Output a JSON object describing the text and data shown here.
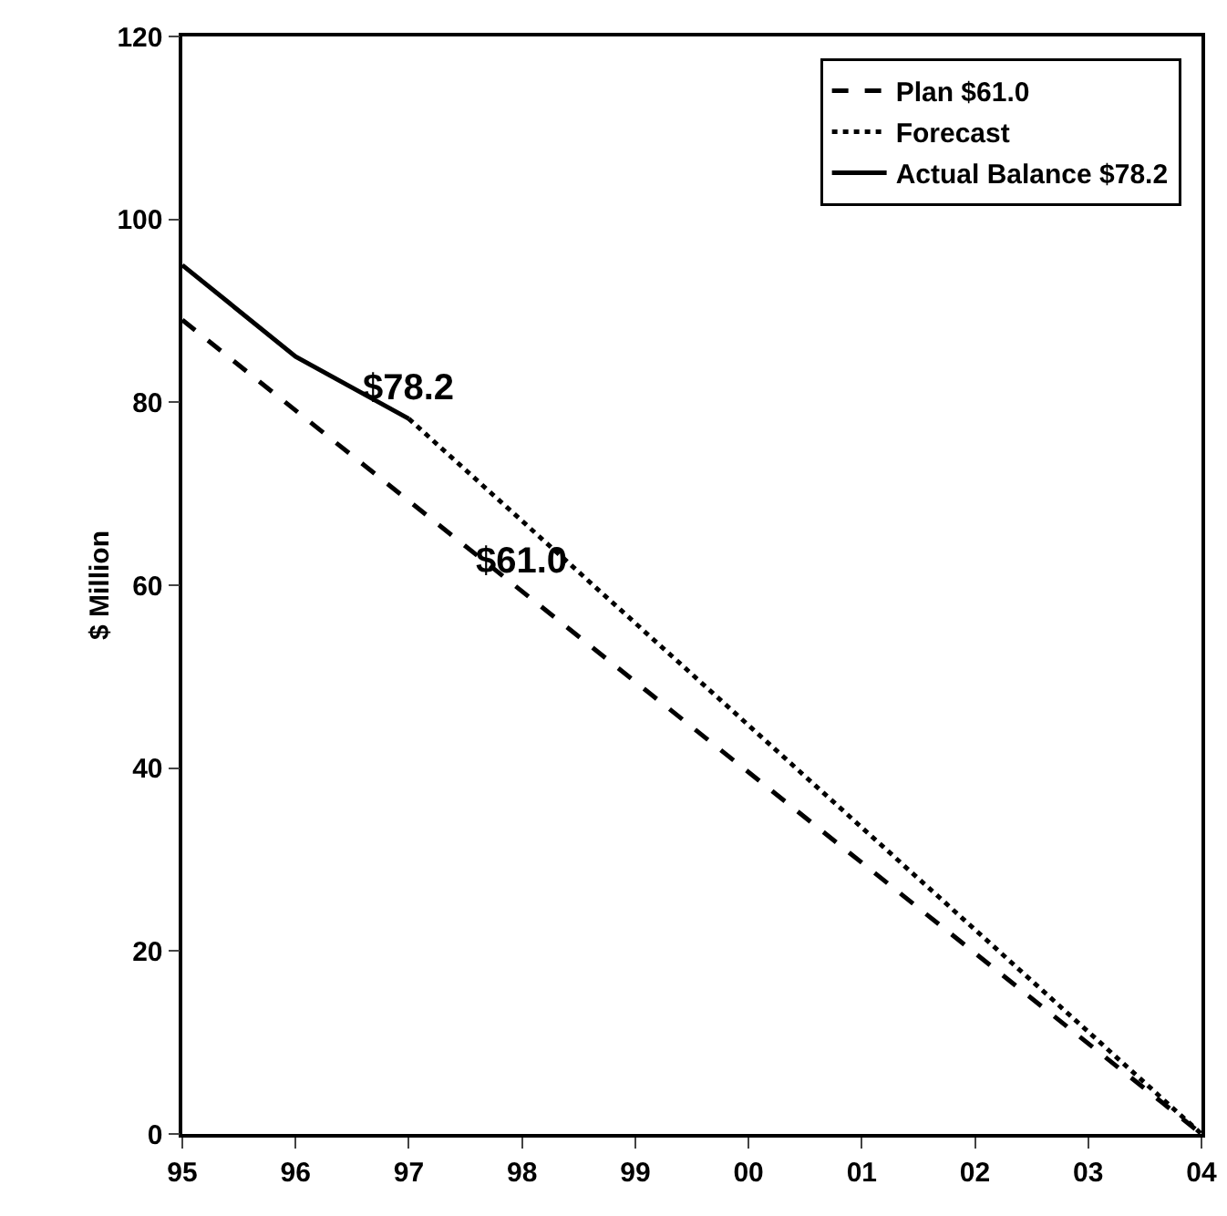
{
  "chart_data": {
    "type": "line",
    "ylabel": "$ Million",
    "categories": [
      "95",
      "96",
      "97",
      "98",
      "99",
      "00",
      "01",
      "02",
      "03",
      "04"
    ],
    "series": [
      {
        "name": "Plan $61.0",
        "color": "#000000",
        "line_style": "dashed",
        "values": [
          89,
          null,
          null,
          null,
          null,
          null,
          null,
          null,
          null,
          0
        ]
      },
      {
        "name": "Forecast",
        "color": "#000000",
        "line_style": "dotted",
        "values": [
          null,
          null,
          78.2,
          null,
          null,
          null,
          null,
          null,
          null,
          0
        ]
      },
      {
        "name": "Actual Balance $78.2",
        "color": "#000000",
        "line_style": "solid",
        "values": [
          95,
          85,
          78.2,
          null,
          null,
          null,
          null,
          null,
          null,
          null
        ]
      }
    ],
    "ylim": [
      0,
      120
    ],
    "yticks": [
      0,
      20,
      40,
      60,
      80,
      100,
      120
    ],
    "annotations": [
      {
        "text": "$78.2",
        "x": "97",
        "y": 78.2
      },
      {
        "text": "$61.0",
        "x": "98",
        "y": 59.3
      }
    ],
    "grid": false,
    "legend": "top right",
    "marker": "none"
  }
}
